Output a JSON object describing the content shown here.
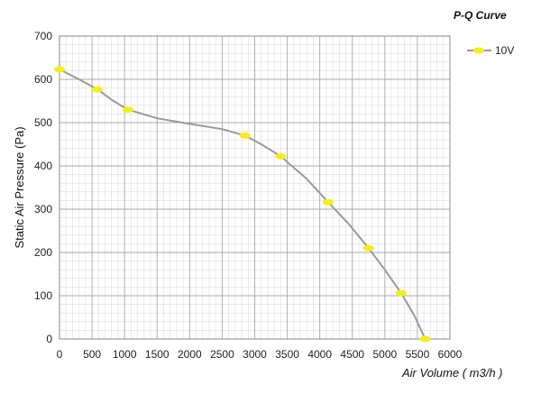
{
  "chart_data": {
    "type": "line",
    "title": "P-Q Curve",
    "xlabel": "Air Volume ( m3/h )",
    "ylabel": "Static Air Pressure  (Pa)",
    "xlim": [
      0,
      6000
    ],
    "ylim": [
      0,
      700
    ],
    "xticks": [
      "0",
      "500",
      "1000",
      "1500",
      "2000",
      "2500",
      "3000",
      "3500",
      "4000",
      "4500",
      "5000",
      "5500",
      "6000"
    ],
    "yticks": [
      "0",
      "100",
      "200",
      "300",
      "400",
      "500",
      "600",
      "700"
    ],
    "grid": true,
    "legend_position": "top-right",
    "series": [
      {
        "name": "10V",
        "line_color": "#9a9a9a",
        "marker_color": "#f5ee1b",
        "points": [
          {
            "x": 0,
            "y": 623
          },
          {
            "x": 580,
            "y": 577
          },
          {
            "x": 1050,
            "y": 530
          },
          {
            "x": 2850,
            "y": 470
          },
          {
            "x": 3400,
            "y": 422
          },
          {
            "x": 4130,
            "y": 316
          },
          {
            "x": 4750,
            "y": 210
          },
          {
            "x": 5250,
            "y": 106
          },
          {
            "x": 5620,
            "y": 0
          }
        ],
        "curve": [
          [
            0,
            623
          ],
          [
            300,
            600
          ],
          [
            580,
            577
          ],
          [
            800,
            553
          ],
          [
            1050,
            530
          ],
          [
            1500,
            510
          ],
          [
            2000,
            497
          ],
          [
            2500,
            485
          ],
          [
            2850,
            470
          ],
          [
            3100,
            450
          ],
          [
            3400,
            422
          ],
          [
            3800,
            370
          ],
          [
            4130,
            316
          ],
          [
            4450,
            265
          ],
          [
            4750,
            210
          ],
          [
            5000,
            160
          ],
          [
            5250,
            106
          ],
          [
            5450,
            55
          ],
          [
            5620,
            0
          ]
        ]
      }
    ]
  }
}
